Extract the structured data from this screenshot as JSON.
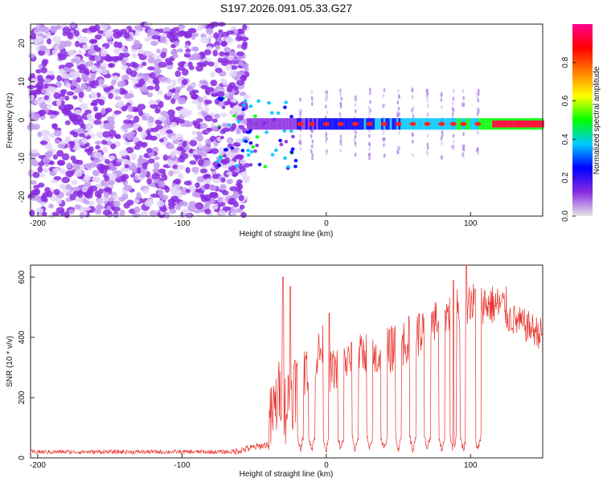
{
  "title": "S197.2026.091.05.33.G27",
  "chart_data": [
    {
      "type": "heatmap",
      "name": "spectrogram",
      "xlabel": "Height of straight line (km)",
      "ylabel": "Frequency (Hz)",
      "xlim": [
        -205,
        150
      ],
      "ylim": [
        -25,
        25
      ],
      "x_ticks": [
        -200,
        -100,
        0,
        100
      ],
      "y_ticks": [
        -20,
        -10,
        0,
        10,
        20
      ],
      "noise_region_x": [
        -205,
        -55
      ],
      "carrier_frequency_hz": -1,
      "carrier_onset_x": -55,
      "tone_x": [
        -18,
        -10,
        0,
        10,
        20,
        30,
        40,
        50,
        60,
        70,
        80,
        88,
        95,
        105
      ],
      "colorbar": {
        "label": "Normalized spectral amplitude",
        "ticks": [
          0.0,
          0.2,
          0.4,
          0.6,
          0.8
        ],
        "range": [
          0,
          1
        ],
        "colors": [
          "#e6e6e6",
          "#8a2be2",
          "#0000ff",
          "#00c8ff",
          "#00ff00",
          "#ffff00",
          "#ff8000",
          "#ff0000",
          "#ff0090"
        ]
      }
    },
    {
      "type": "line",
      "name": "snr",
      "xlabel": "Height of straight line (km)",
      "ylabel": "SNR (10 * v/v)",
      "xlim": [
        -205,
        150
      ],
      "ylim": [
        0,
        640
      ],
      "x_ticks": [
        -200,
        -100,
        0,
        100
      ],
      "y_ticks": [
        0,
        200,
        400,
        600
      ],
      "color": "#e8312a",
      "segments": [
        {
          "x": [
            -205,
            -65
          ],
          "y": [
            20,
            20
          ],
          "noise": 7
        },
        {
          "x": [
            -65,
            -40
          ],
          "y": [
            20,
            45
          ],
          "noise": 12
        },
        {
          "x": [
            -40,
            -30
          ],
          "y": [
            100,
            250
          ],
          "noise": 120
        },
        {
          "x": [
            -30,
            -20
          ],
          "y": [
            150,
            260
          ],
          "noise": 130
        },
        {
          "x": [
            -20,
            0
          ],
          "y": [
            250,
            380
          ],
          "noise": 80
        },
        {
          "x": [
            0,
            30
          ],
          "y": [
            280,
            360
          ],
          "noise": 70
        },
        {
          "x": [
            30,
            70
          ],
          "y": [
            320,
            430
          ],
          "noise": 80
        },
        {
          "x": [
            70,
            100
          ],
          "y": [
            440,
            520
          ],
          "noise": 70
        },
        {
          "x": [
            100,
            125
          ],
          "y": [
            520,
            500
          ],
          "noise": 70
        },
        {
          "x": [
            125,
            150
          ],
          "y": [
            470,
            410
          ],
          "noise": 55
        }
      ],
      "dips": [
        -18,
        -10,
        0,
        10,
        20,
        30,
        40,
        50,
        60,
        70,
        80,
        88,
        95,
        105
      ],
      "peaks": [
        [
          -30,
          600
        ],
        [
          -25,
          570
        ],
        [
          2,
          480
        ],
        [
          88,
          590
        ],
        [
          97,
          640
        ],
        [
          103,
          560
        ]
      ]
    }
  ]
}
